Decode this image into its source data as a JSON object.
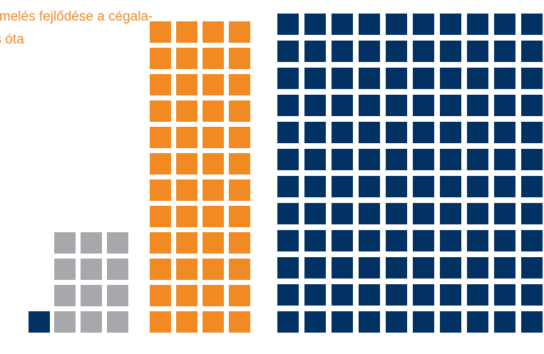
{
  "chart_data": {
    "type": "waffle",
    "title": "ermelés fejlődése a cégala-\nas óta",
    "series": [
      {
        "value": 1,
        "color": "#013263"
      },
      {
        "value": 12,
        "color": "#a7a8ac"
      },
      {
        "value": 48,
        "color": "#f28a24"
      },
      {
        "value": 120,
        "color": "#013263"
      }
    ]
  }
}
